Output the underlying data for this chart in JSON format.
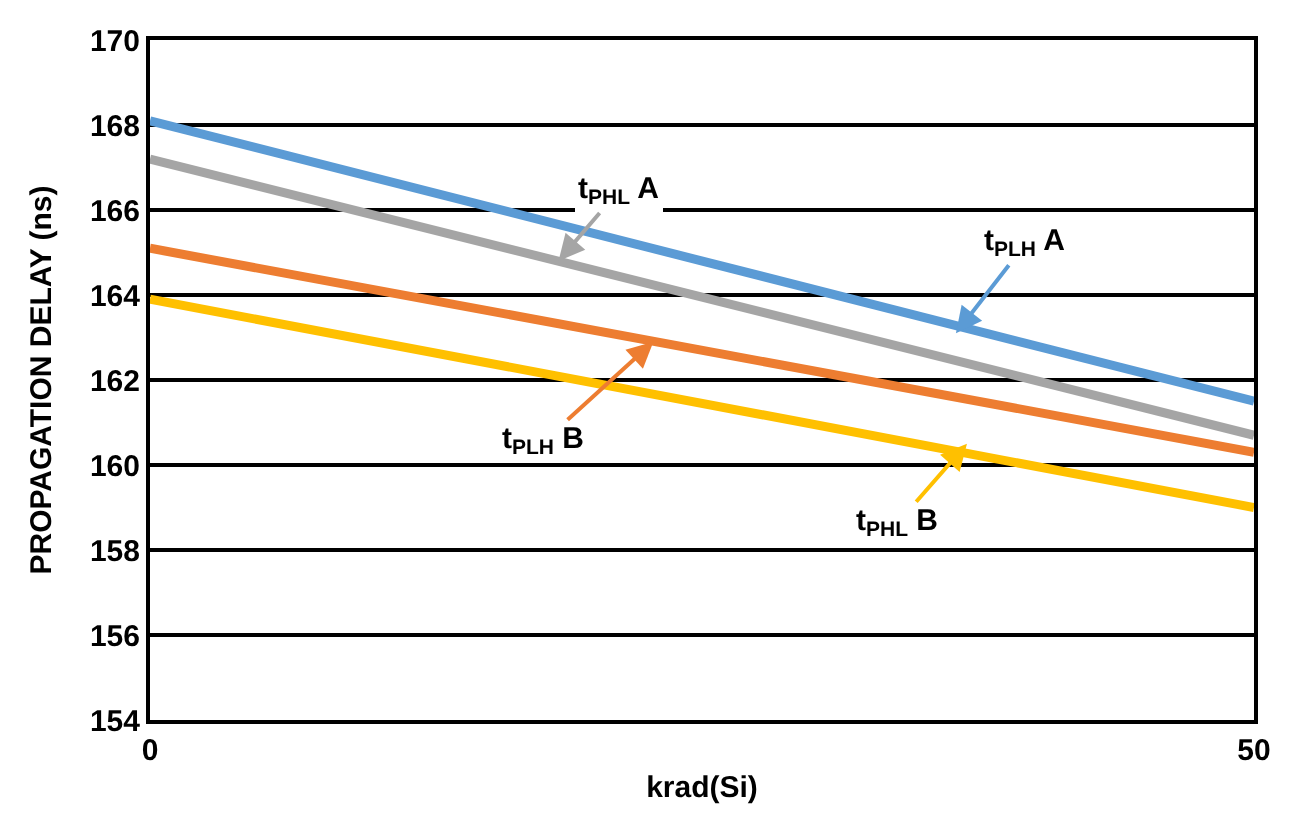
{
  "chart_data": {
    "type": "line",
    "xlabel": "krad(Si)",
    "ylabel": "PROPAGATION DELAY (ns)",
    "x": [
      0,
      50
    ],
    "series": [
      {
        "color": "#5b9bd5",
        "values": [
          168.1,
          161.5
        ]
      },
      {
        "color": "#a5a5a5",
        "values": [
          167.2,
          160.7
        ]
      },
      {
        "color": "#ed7d31",
        "values": [
          165.1,
          160.3
        ]
      },
      {
        "color": "#ffc000",
        "values": [
          163.9,
          159.0
        ]
      }
    ],
    "annotations": [
      {
        "text": "t$_{PHL}$ A",
        "x": 18.5,
        "y": 164.8
      },
      {
        "text": "t$_{PLH}$ A",
        "x": 36.5,
        "y": 163.1
      },
      {
        "text": "t$_{PLH}$ B",
        "x": 22.8,
        "y": 162.9
      },
      {
        "text": "t$_{PHL}$ B",
        "x": 37,
        "y": 160.5
      }
    ],
    "xlim": [
      0,
      50
    ],
    "xticks": [
      0,
      50
    ],
    "ylim": [
      154,
      170
    ],
    "yticks": [
      154,
      156,
      158,
      160,
      162,
      164,
      166,
      168,
      170
    ],
    "grid": "y",
    "marker": "none",
    "line_style": "solid"
  }
}
